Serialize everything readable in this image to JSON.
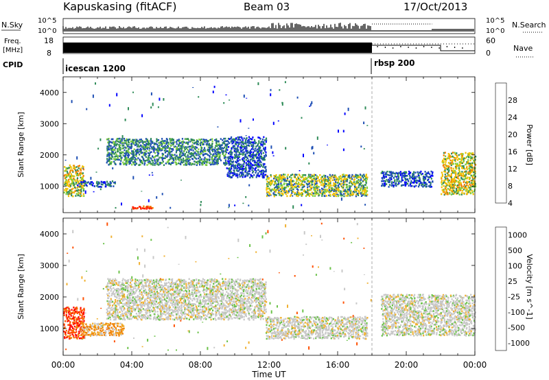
{
  "header": {
    "site": "Kapuskasing (fitACF)",
    "beam": "Beam 03",
    "date": "17/Oct/2013"
  },
  "status_panels": {
    "nsky_label": "N.Sky",
    "nsky_ticks": [
      "10^5",
      "10^0"
    ],
    "nsearch_label": "N.Search",
    "nsearch_ticks": [
      "10^5",
      "10^0"
    ],
    "freq_label": "Freq.",
    "freq_unit": "[MHz]",
    "freq_ticks": [
      "18",
      "8"
    ],
    "nave_label": "Nave",
    "nave_ticks": [
      "60",
      "0"
    ],
    "cpid_label": "CPID",
    "cpid_segments": [
      "icescan 1200",
      "rbsp 200"
    ]
  },
  "chart_data": [
    {
      "type": "heatmap",
      "panel": "power",
      "ylabel": "Slant Range [km]",
      "colorbar_label": "Power [dB]",
      "colorbar_ticks": [
        "28",
        "24",
        "20",
        "16",
        "12",
        "8",
        "4"
      ],
      "colors": [
        "#0000ff",
        "#1e4fb4",
        "#2e8b57",
        "#7ccd3e",
        "#f0c000",
        "#f08000",
        "#ff2000"
      ],
      "xlim_hours": [
        0,
        24
      ],
      "ylim": [
        150,
        4500
      ],
      "yticks": [
        "1000",
        "2000",
        "3000",
        "4000"
      ],
      "regions": [
        {
          "t": [
            0.0,
            1.2
          ],
          "r": [
            700,
            1700
          ],
          "level": "medium-high"
        },
        {
          "t": [
            0.8,
            3.0
          ],
          "r": [
            1000,
            1200
          ],
          "level": "low"
        },
        {
          "t": [
            2.5,
            9.5
          ],
          "r": [
            1700,
            2550
          ],
          "level": "low-medium"
        },
        {
          "t": [
            9.5,
            11.8
          ],
          "r": [
            1300,
            2600
          ],
          "level": "low"
        },
        {
          "t": [
            11.8,
            17.7
          ],
          "r": [
            700,
            1400
          ],
          "level": "medium"
        },
        {
          "t": [
            4.0,
            5.2
          ],
          "r": [
            300,
            380
          ],
          "level": "high"
        },
        {
          "t": [
            18.5,
            21.5
          ],
          "r": [
            1000,
            1500
          ],
          "level": "low"
        },
        {
          "t": [
            22.0,
            24.0
          ],
          "r": [
            750,
            2100
          ],
          "level": "medium-high"
        }
      ]
    },
    {
      "type": "heatmap",
      "panel": "velocity",
      "ylabel": "Slant Range [km]",
      "colorbar_label": "Velocity [m s^-1]",
      "colorbar_ticks": [
        "1000",
        "500",
        "100",
        "25",
        "-25",
        "-100",
        "-500",
        "-1000"
      ],
      "colors": [
        "#1e3caa",
        "#2e8b57",
        "#6cc24a",
        "#c8c8c8",
        "#f0b030",
        "#f08000",
        "#ff5000",
        "#ff0000"
      ],
      "xlim_hours": [
        0,
        24
      ],
      "ylim": [
        150,
        4500
      ],
      "yticks": [
        "1000",
        "2000",
        "3000",
        "4000"
      ],
      "xticks": [
        "00:00",
        "04:00",
        "08:00",
        "12:00",
        "16:00",
        "20:00",
        "00:00"
      ],
      "xlabel": "Time UT",
      "regions": [
        {
          "t": [
            0.0,
            1.2
          ],
          "r": [
            700,
            1700
          ],
          "velocity": "-500 to -1000"
        },
        {
          "t": [
            1.0,
            3.5
          ],
          "r": [
            800,
            1200
          ],
          "velocity": "-100"
        },
        {
          "t": [
            2.5,
            11.8
          ],
          "r": [
            1300,
            2600
          ],
          "velocity": "near zero"
        },
        {
          "t": [
            11.8,
            17.7
          ],
          "r": [
            700,
            1400
          ],
          "velocity": "near zero"
        },
        {
          "t": [
            18.5,
            24.0
          ],
          "r": [
            800,
            2100
          ],
          "velocity": "near zero"
        }
      ]
    }
  ]
}
